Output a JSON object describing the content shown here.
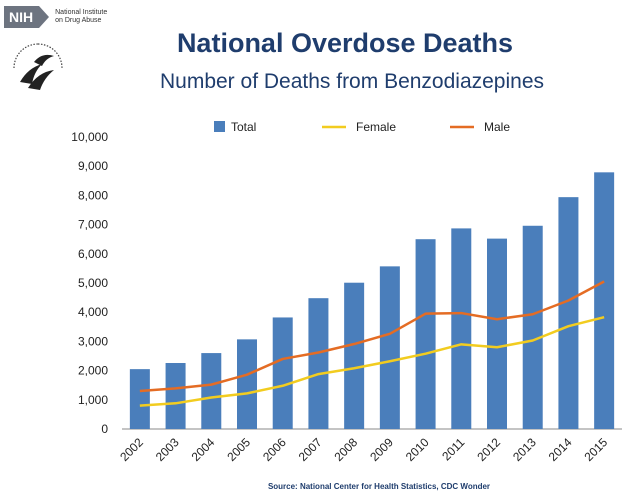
{
  "logo": {
    "nih_badge": "NIH",
    "nih_line1": "National Institute",
    "nih_line2": "on Drug Abuse"
  },
  "title": "National Overdose Deaths",
  "subtitle": "Number of Deaths from Benzodiazepines",
  "source": "Source: National Center for Health Statistics, CDC Wonder",
  "colors": {
    "total": "#4a7ebb",
    "female": "#f2cc1f",
    "male": "#e46c24",
    "title": "#1f3d6d"
  },
  "chart_data": {
    "type": "bar",
    "categories": [
      "2002",
      "2003",
      "2004",
      "2005",
      "2006",
      "2007",
      "2008",
      "2009",
      "2010",
      "2011",
      "2012",
      "2013",
      "2014",
      "2015"
    ],
    "series": [
      {
        "name": "Total",
        "type": "bar",
        "values": [
          2050,
          2260,
          2600,
          3070,
          3820,
          4480,
          5010,
          5570,
          6500,
          6870,
          6520,
          6960,
          7940,
          8790
        ]
      },
      {
        "name": "Female",
        "type": "line",
        "values": [
          800,
          880,
          1080,
          1220,
          1480,
          1880,
          2080,
          2320,
          2580,
          2900,
          2800,
          3030,
          3520,
          3830
        ]
      },
      {
        "name": "Male",
        "type": "line",
        "values": [
          1300,
          1390,
          1520,
          1860,
          2400,
          2620,
          2910,
          3260,
          3950,
          3970,
          3760,
          3930,
          4400,
          5050
        ]
      }
    ],
    "ylim": [
      0,
      10000
    ],
    "yticks": [
      "0",
      "1,000",
      "2,000",
      "3,000",
      "4,000",
      "5,000",
      "6,000",
      "7,000",
      "8,000",
      "9,000",
      "10,000"
    ],
    "legend_position": "top"
  }
}
